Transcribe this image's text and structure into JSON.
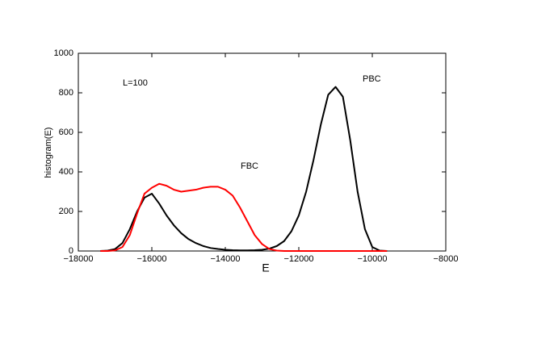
{
  "chart_data": {
    "type": "line",
    "annotation": "L=100",
    "x_label": "E",
    "y_label": "histogram(E)",
    "x": [
      -17400,
      -17200,
      -17000,
      -16800,
      -16600,
      -16400,
      -16200,
      -16000,
      -15800,
      -15600,
      -15400,
      -15200,
      -15000,
      -14800,
      -14600,
      -14400,
      -14200,
      -14000,
      -13800,
      -13600,
      -13400,
      -13200,
      -13000,
      -12800,
      -12600,
      -12400,
      -12200,
      -12000,
      -11800,
      -11600,
      -11400,
      -11200,
      -11000,
      -10800,
      -10600,
      -10400,
      -10200,
      -10000,
      -9800,
      -9600
    ],
    "series": [
      {
        "name": "PBC",
        "color": "#000000",
        "values": [
          0,
          2,
          10,
          40,
          110,
          200,
          270,
          290,
          240,
          180,
          130,
          90,
          60,
          40,
          25,
          15,
          10,
          6,
          4,
          3,
          3,
          4,
          6,
          12,
          25,
          50,
          100,
          180,
          300,
          460,
          640,
          790,
          830,
          780,
          560,
          300,
          110,
          20,
          2,
          0
        ]
      },
      {
        "name": "FBC",
        "color": "#ff0000",
        "values": [
          0,
          0,
          3,
          20,
          80,
          190,
          290,
          320,
          340,
          330,
          310,
          300,
          305,
          310,
          320,
          325,
          325,
          310,
          280,
          220,
          150,
          80,
          35,
          10,
          2,
          0,
          0,
          0,
          0,
          0,
          0,
          0,
          0,
          0,
          0,
          0,
          0,
          0,
          0,
          0
        ]
      }
    ],
    "xlim": [
      -18000,
      -8000
    ],
    "xticks": [
      {
        "value": -18000,
        "label": "−18000"
      },
      {
        "value": -16000,
        "label": "−16000"
      },
      {
        "value": -14000,
        "label": "−14000"
      },
      {
        "value": -12000,
        "label": "−12000"
      },
      {
        "value": -10000,
        "label": "−10000"
      },
      {
        "value": -8000,
        "label": "−8000"
      }
    ],
    "ylim": [
      0,
      1000
    ],
    "yticks": [
      0,
      200,
      400,
      600,
      800,
      1000
    ]
  }
}
